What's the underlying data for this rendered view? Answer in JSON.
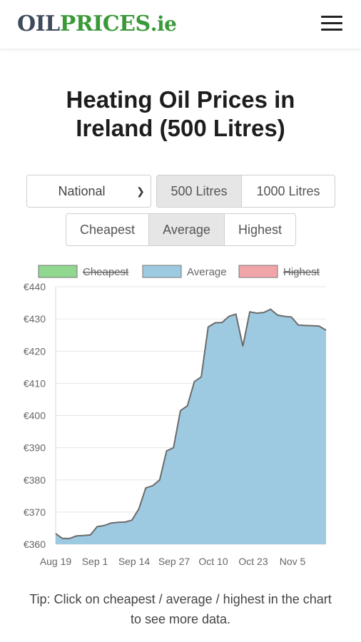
{
  "header": {
    "logo_part1": "OIL",
    "logo_part2": "PRICES",
    "logo_part3": ".ie",
    "menu_icon": "hamburger-menu-icon"
  },
  "page": {
    "title_line1": "Heating Oil Prices in",
    "title_line2": "Ireland (500 Litres)"
  },
  "controls": {
    "region_select": {
      "value": "National"
    },
    "volume_buttons": [
      {
        "label": "500 Litres",
        "active": true
      },
      {
        "label": "1000 Litres",
        "active": false
      }
    ],
    "type_buttons": [
      {
        "label": "Cheapest",
        "active": false
      },
      {
        "label": "Average",
        "active": true
      },
      {
        "label": "Highest",
        "active": false
      }
    ]
  },
  "chart_data": {
    "type": "area",
    "legend": [
      {
        "name": "Cheapest",
        "color": "#90d790",
        "hidden": true
      },
      {
        "name": "Average",
        "color": "#9ecae1",
        "hidden": false
      },
      {
        "name": "Highest",
        "color": "#f2a5a8",
        "hidden": true
      }
    ],
    "x_ticks": [
      "Aug 19",
      "Sep 1",
      "Sep 14",
      "Sep 27",
      "Oct 10",
      "Oct 23",
      "Nov 5"
    ],
    "y_ticks": [
      "€440",
      "€430",
      "€420",
      "€410",
      "€400",
      "€390",
      "€380",
      "€370",
      "€360"
    ],
    "ylim": [
      360,
      440
    ],
    "grid": true,
    "series": [
      {
        "name": "Average",
        "color": "#9ecae1",
        "line_color": "#6b6b6b",
        "values": [
          363.3,
          361.8,
          361.8,
          362.6,
          362.7,
          362.9,
          365.5,
          365.8,
          366.6,
          366.8,
          366.9,
          367.5,
          371.0,
          377.5,
          378.2,
          380.0,
          389.0,
          390.0,
          401.5,
          403.0,
          410.5,
          412.0,
          427.5,
          428.8,
          428.9,
          430.8,
          431.5,
          421.5,
          432.2,
          431.8,
          432.0,
          433.0,
          431.2,
          430.8,
          430.6,
          428.1,
          428.0,
          427.9,
          427.8,
          426.5
        ]
      }
    ]
  },
  "tip": {
    "line1": "Tip: Click on cheapest / average / highest in the chart",
    "line2": "to see more data."
  }
}
